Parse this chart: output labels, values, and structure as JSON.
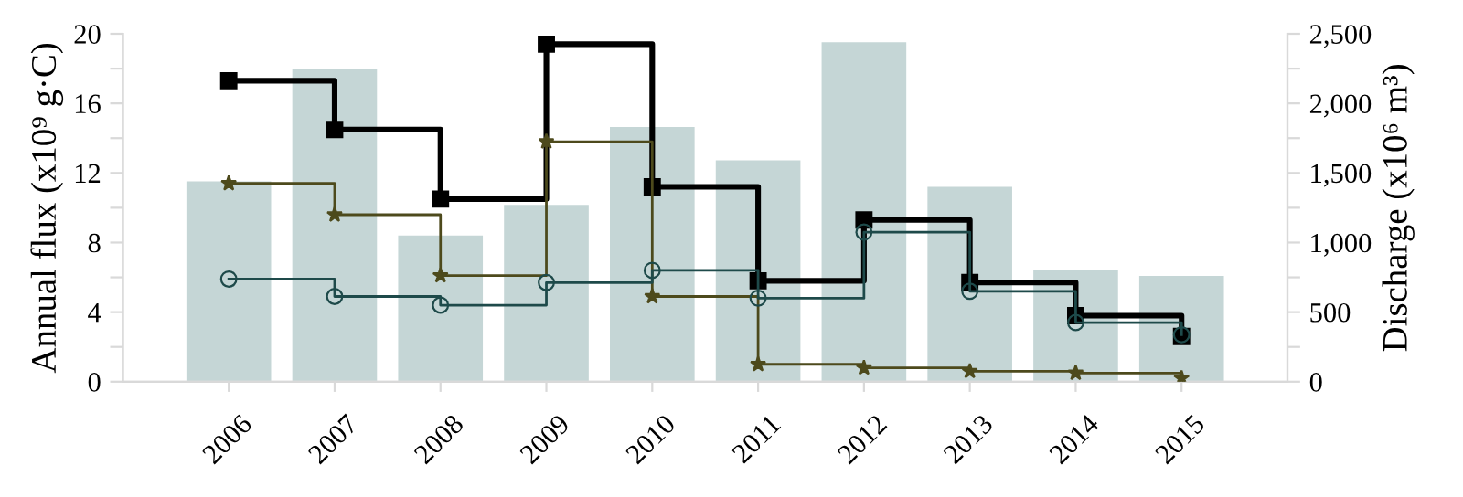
{
  "chart_data": {
    "type": "bar",
    "ylabel": "Annual flux (x10⁹ g·C)",
    "y2label": "Discharge (x10⁶ m³)",
    "categories": [
      "2006",
      "2007",
      "2008",
      "2009",
      "2010",
      "2011",
      "2012",
      "2013",
      "2014",
      "2015"
    ],
    "series": [
      {
        "axis": "y2",
        "color": "#c5d6d6",
        "values": [
          1440,
          2250,
          1050,
          1270,
          1830,
          1590,
          2440,
          1400,
          800,
          760
        ]
      },
      {
        "type": "step",
        "color": "#000000",
        "marker": "square",
        "values": [
          17.3,
          14.5,
          10.5,
          19.4,
          11.2,
          5.8,
          9.3,
          5.7,
          3.8,
          2.6
        ]
      },
      {
        "type": "step",
        "color": "#4d4a1c",
        "marker": "star",
        "values": [
          11.4,
          9.6,
          6.1,
          13.8,
          4.9,
          1.0,
          0.8,
          0.6,
          0.5,
          0.2
        ]
      },
      {
        "type": "step",
        "color": "#1e4a4a",
        "marker": "circle",
        "values": [
          5.9,
          4.9,
          4.4,
          5.7,
          6.4,
          4.8,
          8.6,
          5.2,
          3.4,
          2.7
        ]
      }
    ],
    "ylim": [
      0,
      20
    ],
    "yticks": [
      0,
      {
        "value": 2,
        "label": null
      },
      4,
      {
        "value": 6,
        "label": null
      },
      8,
      {
        "value": 10,
        "label": null
      },
      12,
      {
        "value": 14,
        "label": null
      },
      16,
      {
        "value": 18,
        "label": null
      },
      20
    ],
    "y2lim": [
      0,
      2500
    ],
    "y2ticks": [
      0,
      {
        "value": 250,
        "label": null
      },
      500,
      {
        "value": 750,
        "label": null
      },
      {
        "value": 1000,
        "label": "1,000"
      },
      {
        "value": 1250,
        "label": null
      },
      {
        "value": 1500,
        "label": "1,500"
      },
      {
        "value": 1750,
        "label": null
      },
      {
        "value": 2000,
        "label": "2,000"
      },
      {
        "value": 2250,
        "label": null
      },
      {
        "value": 2500,
        "label": "2,500"
      }
    ],
    "grid": false,
    "legend": false
  }
}
